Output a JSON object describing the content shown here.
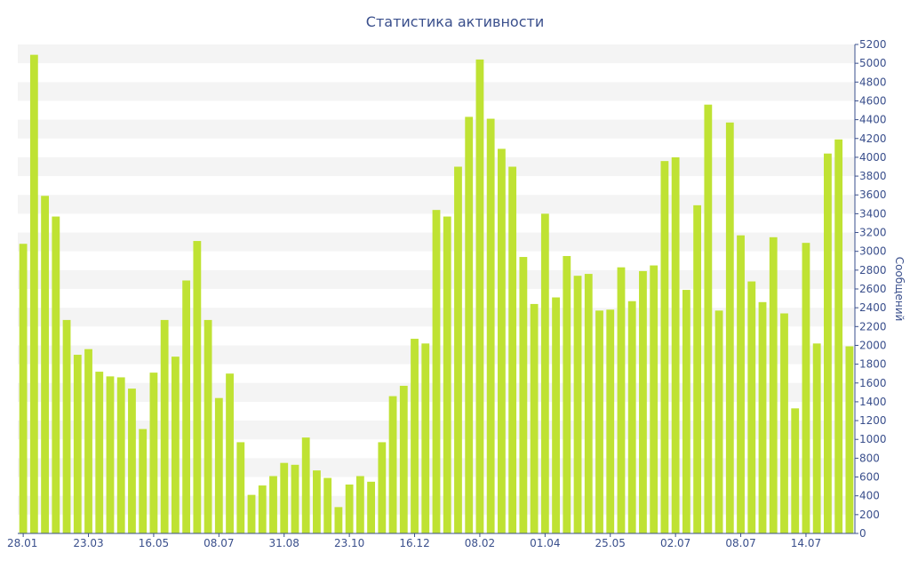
{
  "chart_data": {
    "type": "bar",
    "title": "Статистика активности",
    "xlabel": "",
    "ylabel": "Сообщений",
    "ylim": [
      0,
      5200
    ],
    "y_ticks": [
      0,
      200,
      400,
      600,
      800,
      1000,
      1200,
      1400,
      1600,
      1800,
      2000,
      2200,
      2400,
      2600,
      2800,
      3000,
      3200,
      3400,
      3600,
      3800,
      4000,
      4200,
      4400,
      4600,
      4800,
      5000,
      5200
    ],
    "y_axis_side": "right",
    "grid": "horizontal bands",
    "x_tick_labels": [
      {
        "index": 0,
        "label": "28.01"
      },
      {
        "index": 6,
        "label": "23.03"
      },
      {
        "index": 12,
        "label": "16.05"
      },
      {
        "index": 18,
        "label": "08.07"
      },
      {
        "index": 24,
        "label": "31.08"
      },
      {
        "index": 30,
        "label": "23.10"
      },
      {
        "index": 36,
        "label": "16.12"
      },
      {
        "index": 42,
        "label": "08.02"
      },
      {
        "index": 48,
        "label": "01.04"
      },
      {
        "index": 54,
        "label": "25.05"
      },
      {
        "index": 60,
        "label": "02.07"
      },
      {
        "index": 66,
        "label": "08.07"
      },
      {
        "index": 72,
        "label": "14.07"
      }
    ],
    "values": [
      3080,
      5090,
      3590,
      3370,
      2270,
      1900,
      1960,
      1720,
      1670,
      1660,
      1540,
      1110,
      1710,
      2270,
      1880,
      2690,
      3110,
      2270,
      1440,
      1700,
      970,
      410,
      510,
      610,
      750,
      730,
      1020,
      670,
      590,
      280,
      520,
      610,
      550,
      970,
      1460,
      1570,
      2070,
      2020,
      3440,
      3370,
      3900,
      4430,
      5040,
      4410,
      4090,
      3900,
      2940,
      2440,
      3400,
      2510,
      2950,
      2740,
      2760,
      2370,
      2380,
      2830,
      2470,
      2790,
      2850,
      3960,
      4000,
      2590,
      3490,
      4560,
      2370,
      4370,
      3170,
      2680,
      2460,
      3150,
      2340,
      1330,
      3090,
      2020,
      4040,
      4190,
      1990
    ],
    "colors": {
      "bar": "#bfe233",
      "axis_text": "#3a4f8c",
      "band": "#f4f4f4"
    }
  }
}
